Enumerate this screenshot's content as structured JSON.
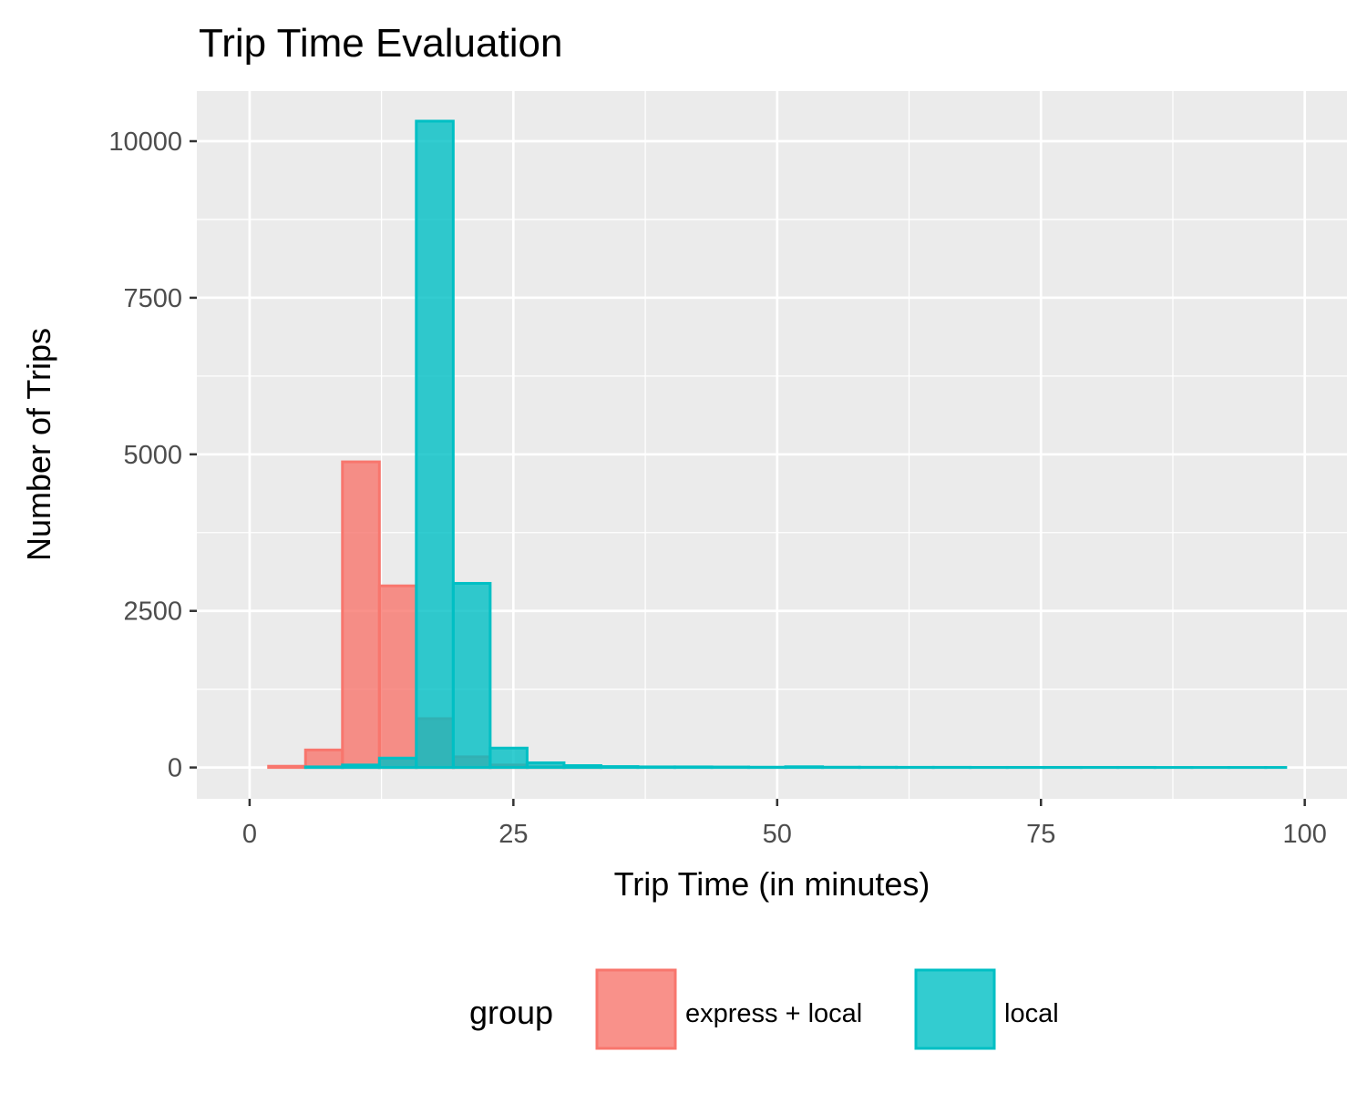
{
  "chart_data": {
    "type": "bar",
    "subtype": "histogram-overlaid",
    "title": "Trip Time Evaluation",
    "xlabel": "Trip Time (in minutes)",
    "ylabel": "Number of Trips",
    "xlim": [
      -5,
      104
    ],
    "ylim": [
      -500,
      10800
    ],
    "x_ticks": [
      0,
      25,
      50,
      75,
      100
    ],
    "y_ticks": [
      0,
      2500,
      5000,
      7500,
      10000
    ],
    "x_tick_labels": [
      "0",
      "25",
      "50",
      "75",
      "100"
    ],
    "y_tick_labels": [
      "0",
      "2500",
      "5000",
      "7500",
      "10000"
    ],
    "bin_width": 3.5,
    "grid": true,
    "legend": {
      "title": "group",
      "position": "bottom",
      "entries": [
        "express + local",
        "local"
      ]
    },
    "series": [
      {
        "name": "express + local",
        "color": "#F8766D",
        "bins": [
          {
            "x0": 1.8,
            "x1": 5.3,
            "value": 20
          },
          {
            "x0": 5.3,
            "x1": 8.8,
            "value": 280
          },
          {
            "x0": 8.8,
            "x1": 12.3,
            "value": 4880
          },
          {
            "x0": 12.3,
            "x1": 15.8,
            "value": 2900
          },
          {
            "x0": 15.8,
            "x1": 19.3,
            "value": 780
          },
          {
            "x0": 19.3,
            "x1": 22.8,
            "value": 170
          },
          {
            "x0": 22.8,
            "x1": 26.3,
            "value": 40
          },
          {
            "x0": 26.3,
            "x1": 29.8,
            "value": 10
          },
          {
            "x0": 29.8,
            "x1": 33.3,
            "value": 5
          },
          {
            "x0": 33.3,
            "x1": 98.2,
            "value": 0
          }
        ]
      },
      {
        "name": "local",
        "color": "#00BFC4",
        "bins": [
          {
            "x0": 1.8,
            "x1": 5.3,
            "value": 0
          },
          {
            "x0": 5.3,
            "x1": 8.8,
            "value": 10
          },
          {
            "x0": 8.8,
            "x1": 12.3,
            "value": 40
          },
          {
            "x0": 12.3,
            "x1": 15.8,
            "value": 150
          },
          {
            "x0": 15.8,
            "x1": 19.3,
            "value": 10320
          },
          {
            "x0": 19.3,
            "x1": 22.8,
            "value": 2940
          },
          {
            "x0": 22.8,
            "x1": 26.3,
            "value": 310
          },
          {
            "x0": 26.3,
            "x1": 29.8,
            "value": 75
          },
          {
            "x0": 29.8,
            "x1": 33.3,
            "value": 30
          },
          {
            "x0": 33.3,
            "x1": 36.8,
            "value": 15
          },
          {
            "x0": 36.8,
            "x1": 40.3,
            "value": 10
          },
          {
            "x0": 40.3,
            "x1": 43.8,
            "value": 10
          },
          {
            "x0": 43.8,
            "x1": 47.3,
            "value": 8
          },
          {
            "x0": 47.3,
            "x1": 50.8,
            "value": 5
          },
          {
            "x0": 50.8,
            "x1": 54.3,
            "value": 12
          },
          {
            "x0": 54.3,
            "x1": 57.8,
            "value": 5
          },
          {
            "x0": 57.8,
            "x1": 61.3,
            "value": 4
          },
          {
            "x0": 61.3,
            "x1": 64.8,
            "value": 3
          },
          {
            "x0": 64.8,
            "x1": 68.3,
            "value": 3
          },
          {
            "x0": 68.3,
            "x1": 71.8,
            "value": 2
          },
          {
            "x0": 71.8,
            "x1": 75.3,
            "value": 2
          },
          {
            "x0": 75.3,
            "x1": 78.8,
            "value": 2
          },
          {
            "x0": 78.8,
            "x1": 82.3,
            "value": 2
          },
          {
            "x0": 82.3,
            "x1": 85.8,
            "value": 2
          },
          {
            "x0": 85.8,
            "x1": 89.3,
            "value": 1
          },
          {
            "x0": 89.3,
            "x1": 92.8,
            "value": 1
          },
          {
            "x0": 92.8,
            "x1": 96.3,
            "value": 1
          },
          {
            "x0": 96.3,
            "x1": 98.2,
            "value": 1
          }
        ]
      }
    ]
  }
}
